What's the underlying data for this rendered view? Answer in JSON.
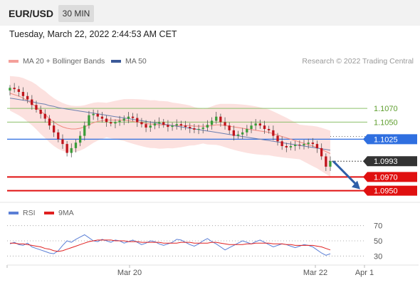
{
  "header": {
    "pair": "EUR/USD",
    "timeframe": "30 MIN",
    "datetime": "Tuesday, March 22, 2022 2:44:53 AM CET"
  },
  "legend": {
    "ma20_label": "MA 20 + Bollinger Bands",
    "ma20_color": "#f4a09a",
    "ma50_label": "MA 50",
    "ma50_color": "#3b5998",
    "credit": "Research © 2022 Trading Central"
  },
  "rsi_legend": {
    "rsi_label": "RSI",
    "rsi_color": "#5b7fd6",
    "ma9_label": "9MA",
    "ma9_color": "#e02020"
  },
  "chart_data": [
    {
      "type": "candlestick",
      "title": "EUR/USD 30 MIN",
      "ylim": [
        1.0935,
        1.112
      ],
      "x_ticks": [
        "Mar 20",
        "Mar 22",
        "Apr 1"
      ],
      "levels": [
        {
          "value": 1.107,
          "label": "1.1070",
          "kind": "resistance",
          "color": "#8cc06a"
        },
        {
          "value": 1.105,
          "label": "1.1050",
          "kind": "resistance",
          "color": "#8cc06a"
        },
        {
          "value": 1.1025,
          "label": "1.1025",
          "kind": "pivot",
          "color": "#2f6fe0"
        },
        {
          "value": 1.0993,
          "label": "1.0993",
          "kind": "current",
          "color": "#333333"
        },
        {
          "value": 1.097,
          "label": "1.0970",
          "kind": "support",
          "color": "#e01010"
        },
        {
          "value": 1.095,
          "label": "1.0950",
          "kind": "support",
          "color": "#e01010"
        }
      ],
      "close": [
        1.11,
        1.1098,
        1.1094,
        1.1088,
        1.1083,
        1.1075,
        1.1068,
        1.1062,
        1.1055,
        1.1045,
        1.1035,
        1.1025,
        1.1018,
        1.1005,
        1.1012,
        1.102,
        1.103,
        1.1045,
        1.106,
        1.1062,
        1.1058,
        1.1055,
        1.105,
        1.1048,
        1.105,
        1.1052,
        1.1055,
        1.1058,
        1.1056,
        1.105,
        1.1047,
        1.1042,
        1.1045,
        1.1048,
        1.105,
        1.1046,
        1.1043,
        1.1045,
        1.1047,
        1.1045,
        1.1043,
        1.1041,
        1.1039,
        1.104,
        1.1042,
        1.1046,
        1.1052,
        1.1058,
        1.105,
        1.1045,
        1.1038,
        1.103,
        1.1032,
        1.1035,
        1.104,
        1.1045,
        1.1048,
        1.1045,
        1.104,
        1.1038,
        1.103,
        1.1022,
        1.1015,
        1.1013,
        1.1015,
        1.1017,
        1.1016,
        1.1018,
        1.102,
        1.1018,
        1.1012,
        1.1,
        1.0985,
        1.0993
      ],
      "ma20": [
        1.1092,
        1.109,
        1.1088,
        1.1085,
        1.1081,
        1.1077,
        1.1072,
        1.1066,
        1.1061,
        1.1055,
        1.105,
        1.1046,
        1.1043,
        1.1041,
        1.104,
        1.104,
        1.1041,
        1.1043,
        1.1046,
        1.1049,
        1.1051,
        1.1052,
        1.1053,
        1.1053,
        1.1053,
        1.1053,
        1.1053,
        1.1052,
        1.1051,
        1.105,
        1.1049,
        1.1048,
        1.1047,
        1.1047,
        1.1046,
        1.1046,
        1.1046,
        1.1045,
        1.1045,
        1.1045,
        1.1045,
        1.1045,
        1.1044,
        1.1044,
        1.1044,
        1.1044,
        1.1045,
        1.1046,
        1.1046,
        1.1045,
        1.1044,
        1.1043,
        1.1042,
        1.1041,
        1.104,
        1.1039,
        1.1038,
        1.1037,
        1.1036,
        1.1035,
        1.1033,
        1.1031,
        1.1029,
        1.1027,
        1.1025,
        1.1023,
        1.1021,
        1.1019,
        1.1017,
        1.1015,
        1.1013,
        1.101,
        1.1007,
        1.1004
      ],
      "ma50": [
        1.1085,
        1.1084,
        1.1083,
        1.1082,
        1.1081,
        1.108,
        1.1078,
        1.1077,
        1.1076,
        1.1074,
        1.1073,
        1.1071,
        1.107,
        1.1069,
        1.1068,
        1.1067,
        1.1066,
        1.1065,
        1.1064,
        1.1063,
        1.1062,
        1.1061,
        1.106,
        1.1059,
        1.1058,
        1.1057,
        1.1056,
        1.1055,
        1.1054,
        1.1053,
        1.1052,
        1.1051,
        1.105,
        1.1049,
        1.1048,
        1.1047,
        1.1046,
        1.1045,
        1.1044,
        1.1043,
        1.1042,
        1.1041,
        1.104,
        1.1039,
        1.1038,
        1.1037,
        1.1036,
        1.1035,
        1.1034,
        1.1033,
        1.1032,
        1.1031,
        1.103,
        1.1029,
        1.1028,
        1.1027,
        1.1026,
        1.1025,
        1.1024,
        1.1023,
        1.1022,
        1.1021,
        1.102,
        1.1019,
        1.1018,
        1.1017,
        1.1016,
        1.1015,
        1.1014,
        1.1013,
        1.1012,
        1.1011,
        1.101,
        1.1009
      ],
      "band_width": 0.0028
    },
    {
      "type": "line",
      "title": "RSI",
      "ylim": [
        20,
        80
      ],
      "y_ticks": [
        70,
        50,
        30
      ],
      "series": [
        {
          "name": "RSI",
          "color": "#5b7fd6",
          "values": [
            46,
            48,
            45,
            44,
            47,
            42,
            40,
            38,
            36,
            34,
            33,
            37,
            44,
            50,
            48,
            52,
            55,
            58,
            54,
            50,
            49,
            52,
            50,
            48,
            51,
            50,
            47,
            49,
            51,
            48,
            45,
            47,
            50,
            49,
            46,
            44,
            46,
            48,
            52,
            51,
            48,
            45,
            43,
            46,
            50,
            53,
            49,
            46,
            42,
            38,
            41,
            44,
            47,
            50,
            48,
            46,
            49,
            51,
            48,
            45,
            42,
            44,
            46,
            45,
            43,
            41,
            43,
            45,
            44,
            42,
            38,
            34,
            31,
            33
          ]
        },
        {
          "name": "9MA",
          "color": "#e02020",
          "values": [
            47,
            47,
            46,
            46,
            45,
            44,
            43,
            42,
            40,
            39,
            37,
            36,
            37,
            39,
            41,
            43,
            45,
            47,
            49,
            50,
            51,
            51,
            51,
            51,
            50,
            50,
            50,
            49,
            49,
            49,
            48,
            48,
            48,
            48,
            48,
            47,
            47,
            47,
            47,
            48,
            48,
            48,
            47,
            47,
            47,
            47,
            48,
            48,
            47,
            46,
            45,
            45,
            45,
            45,
            46,
            46,
            47,
            47,
            47,
            47,
            46,
            46,
            46,
            45,
            45,
            44,
            44,
            44,
            44,
            44,
            43,
            42,
            40,
            38
          ]
        }
      ]
    }
  ]
}
